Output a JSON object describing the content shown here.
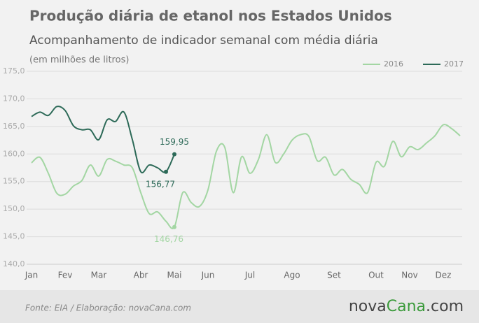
{
  "chart_data": {
    "type": "line",
    "title": "Produção diária de etanol nos Estados Unidos",
    "subtitle": "Acompanhamento de indicador semanal com média diária",
    "y_label": "(em milhões de litros)",
    "source": "Fonte:  EIA  / Elaboração:  novaCana.com",
    "brand": [
      "nova",
      "Cana",
      ".com"
    ],
    "xlim": [
      0,
      53
    ],
    "xticks": [
      {
        "value": 1,
        "label": "Jan"
      },
      {
        "value": 5,
        "label": "Fev"
      },
      {
        "value": 9,
        "label": "Mar"
      },
      {
        "value": 14,
        "label": "Abr"
      },
      {
        "value": 18,
        "label": "Mai"
      },
      {
        "value": 22,
        "label": "Jun"
      },
      {
        "value": 27,
        "label": "Jul"
      },
      {
        "value": 32,
        "label": "Ago"
      },
      {
        "value": 37,
        "label": "Set"
      },
      {
        "value": 42,
        "label": "Out"
      },
      {
        "value": 46,
        "label": "Nov"
      },
      {
        "value": 50,
        "label": "Dez"
      }
    ],
    "ylim": [
      140,
      175
    ],
    "yticks": [
      {
        "value": 140,
        "label": "140,0"
      },
      {
        "value": 145,
        "label": "145,0"
      },
      {
        "value": 150,
        "label": "150,0"
      },
      {
        "value": 155,
        "label": "155,0"
      },
      {
        "value": 160,
        "label": "160,0"
      },
      {
        "value": 165,
        "label": "165,0"
      },
      {
        "value": 170,
        "label": "170,0"
      },
      {
        "value": 175,
        "label": "175,0"
      }
    ],
    "grid": true,
    "legend": "top-right",
    "series": [
      {
        "name": "2016",
        "color": "#a3d6a3",
        "x": [
          1,
          2,
          3,
          4,
          5,
          6,
          7,
          8,
          9,
          10,
          11,
          12,
          13,
          14,
          15,
          16,
          17,
          18,
          19,
          20,
          21,
          22,
          23,
          24,
          25,
          26,
          27,
          28,
          29,
          30,
          31,
          32,
          33,
          34,
          35,
          36,
          37,
          38,
          39,
          40,
          41,
          42,
          43,
          44,
          45,
          46,
          47,
          48,
          49,
          50,
          51,
          52
        ],
        "values": [
          158.4,
          159.4,
          156.5,
          152.9,
          152.7,
          154.2,
          155.2,
          158,
          156,
          159,
          158.7,
          158,
          157.5,
          153,
          149.2,
          149.5,
          147.8,
          146.76,
          153,
          151.2,
          150.5,
          153.5,
          160.5,
          161.2,
          153,
          159.5,
          156.5,
          159,
          163.5,
          158.5,
          160,
          162.5,
          163.5,
          163.2,
          158.8,
          159.4,
          156.2,
          157.2,
          155.4,
          154.5,
          153,
          158.5,
          157.8,
          162.3,
          159.5,
          161.3,
          160.8,
          162,
          163.3,
          165.3,
          164.6,
          163.3
        ],
        "value_labels": [
          null,
          null,
          null,
          null,
          null,
          null,
          null,
          null,
          null,
          null,
          null,
          null,
          null,
          null,
          null,
          null,
          null,
          "146,76",
          null,
          null,
          null,
          null,
          null,
          null,
          null,
          null,
          null,
          null,
          null,
          null,
          null,
          null,
          null,
          null,
          null,
          null,
          null,
          null,
          null,
          null,
          null,
          null,
          null,
          null,
          null,
          null,
          null,
          null,
          null,
          null,
          null,
          null
        ]
      },
      {
        "name": "2017",
        "color": "#2d6a58",
        "x": [
          1,
          2,
          3,
          4,
          5,
          6,
          7,
          8,
          9,
          10,
          11,
          12,
          13,
          14,
          15,
          16,
          17,
          18
        ],
        "values": [
          166.8,
          167.6,
          167,
          168.6,
          167.9,
          165.1,
          164.4,
          164.4,
          162.6,
          166.2,
          165.9,
          167.6,
          162.6,
          156.8,
          158,
          157.5,
          156.77,
          159.95
        ],
        "value_labels": [
          null,
          null,
          null,
          null,
          null,
          null,
          null,
          null,
          null,
          null,
          null,
          null,
          null,
          null,
          null,
          null,
          "156,77",
          "159,95"
        ]
      }
    ]
  }
}
